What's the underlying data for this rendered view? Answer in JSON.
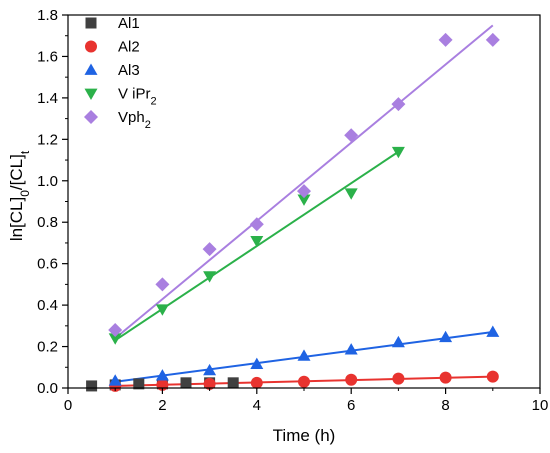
{
  "chart_data": {
    "type": "scatter",
    "title": "",
    "xlabel": "Time (h)",
    "ylabel": {
      "base": "ln[CL]",
      "sub1": "0",
      "mid": "/[CL]",
      "sub2": "t"
    },
    "xlim": [
      0,
      10
    ],
    "ylim": [
      0,
      1.8
    ],
    "xticks": [
      "0",
      "2",
      "4",
      "6",
      "8",
      "10"
    ],
    "yticks": [
      "0.0",
      "0.2",
      "0.4",
      "0.6",
      "0.8",
      "1.0",
      "1.2",
      "1.4",
      "1.6",
      "1.8"
    ],
    "grid": false,
    "legend_position": "top-left",
    "series": [
      {
        "name": "Al1",
        "legend": {
          "text": "Al1"
        },
        "marker": "square",
        "color": "#404040",
        "x": [
          0.5,
          1,
          1.5,
          2,
          2.5,
          3,
          3.5
        ],
        "y": [
          0.01,
          0.015,
          0.02,
          0.02,
          0.025,
          0.025,
          0.025
        ],
        "fit": null
      },
      {
        "name": "Al2",
        "legend": {
          "text": "Al2"
        },
        "marker": "circle",
        "color": "#e8332f",
        "x": [
          1,
          2,
          3,
          4,
          5,
          6,
          7,
          8,
          9
        ],
        "y": [
          0.01,
          0.015,
          0.02,
          0.025,
          0.03,
          0.04,
          0.045,
          0.05,
          0.055
        ],
        "fit": [
          [
            1,
            0.01
          ],
          [
            9,
            0.055
          ]
        ]
      },
      {
        "name": "Al3",
        "legend": {
          "text": "Al3"
        },
        "marker": "triangle-up",
        "color": "#1f63e3",
        "x": [
          1,
          2,
          3,
          4,
          5,
          6,
          7,
          8,
          9
        ],
        "y": [
          0.035,
          0.06,
          0.085,
          0.115,
          0.155,
          0.185,
          0.22,
          0.245,
          0.27
        ],
        "fit": [
          [
            1,
            0.03
          ],
          [
            9,
            0.27
          ]
        ]
      },
      {
        "name": "V iPr2",
        "legend": {
          "text": "V iPr",
          "sub": "2"
        },
        "marker": "triangle-down",
        "color": "#2bb14a",
        "x": [
          1,
          2,
          3,
          4,
          5,
          6,
          7
        ],
        "y": [
          0.24,
          0.38,
          0.54,
          0.71,
          0.91,
          0.94,
          1.14
        ],
        "fit": [
          [
            1,
            0.23
          ],
          [
            7,
            1.14
          ]
        ]
      },
      {
        "name": "Vph2",
        "legend": {
          "text": "Vph",
          "sub": "2"
        },
        "marker": "diamond",
        "color": "#a97fe0",
        "x": [
          1,
          2,
          3,
          4,
          5,
          6,
          7,
          8,
          9
        ],
        "y": [
          0.28,
          0.5,
          0.67,
          0.79,
          0.95,
          1.22,
          1.37,
          1.68,
          1.68
        ],
        "fit": [
          [
            1,
            0.24
          ],
          [
            9,
            1.75
          ]
        ]
      }
    ]
  }
}
